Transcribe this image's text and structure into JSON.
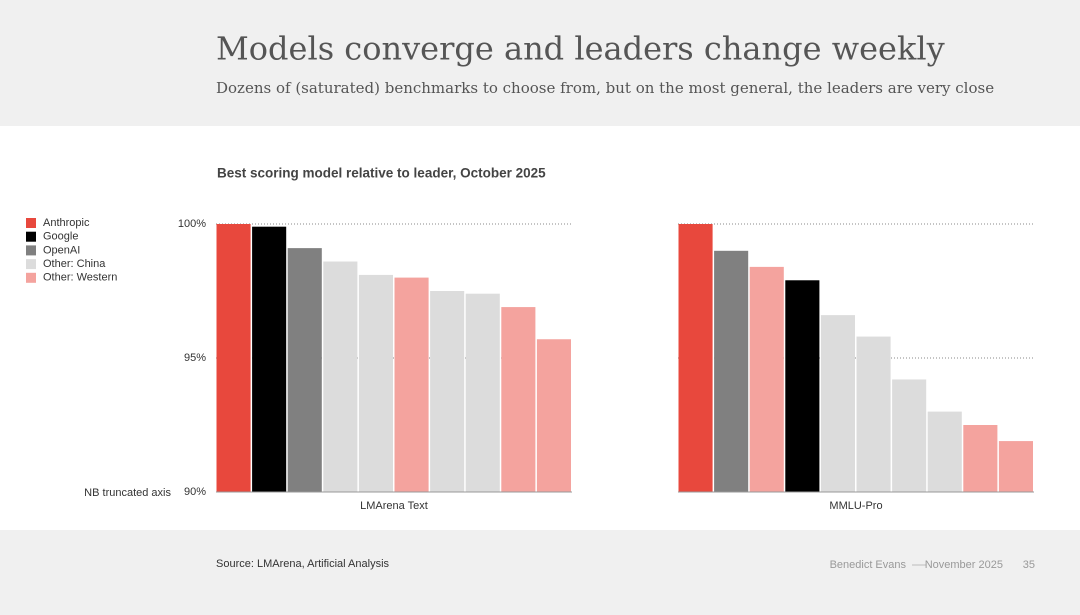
{
  "header": {
    "title": "Models converge and leaders change weekly",
    "subtitle": "Dozens of (saturated) benchmarks to choose from, but on the most general, the leaders are very close"
  },
  "chart_title": "Best scoring model relative to leader, October 2025",
  "note": "NB truncated axis",
  "legend": [
    {
      "name": "Anthropic",
      "color": "#e8483d"
    },
    {
      "name": "Google",
      "color": "#000000"
    },
    {
      "name": "OpenAI",
      "color": "#808080"
    },
    {
      "name": "Other: China",
      "color": "#dcdcdc"
    },
    {
      "name": "Other: Western",
      "color": "#f4a39e"
    }
  ],
  "chart_data": [
    {
      "type": "bar",
      "xlabel": "LMArena Text",
      "values": [
        100,
        99.9,
        99.1,
        98.6,
        98.1,
        98.0,
        97.5,
        97.4,
        96.9,
        95.7
      ],
      "colors": [
        "#e8483d",
        "#000000",
        "#808080",
        "#dcdcdc",
        "#dcdcdc",
        "#f4a39e",
        "#dcdcdc",
        "#dcdcdc",
        "#f4a39e",
        "#f4a39e"
      ],
      "ylim": [
        90,
        100
      ],
      "yticks": [
        {
          "value": 90,
          "label": "90%"
        },
        {
          "value": 95,
          "label": "95%"
        },
        {
          "value": 100,
          "label": "100%"
        }
      ],
      "ytick_labels": true,
      "grid": true
    },
    {
      "type": "bar",
      "xlabel": "MMLU-Pro",
      "values": [
        100,
        99.0,
        98.4,
        97.9,
        96.6,
        95.8,
        94.2,
        93.0,
        92.5,
        91.9
      ],
      "colors": [
        "#e8483d",
        "#808080",
        "#f4a39e",
        "#000000",
        "#dcdcdc",
        "#dcdcdc",
        "#dcdcdc",
        "#dcdcdc",
        "#f4a39e",
        "#f4a39e"
      ],
      "ylim": [
        90,
        100
      ],
      "yticks": [
        {
          "value": 90,
          "label": "90%"
        },
        {
          "value": 95,
          "label": "95%"
        },
        {
          "value": 100,
          "label": "100%"
        }
      ],
      "ytick_labels": false,
      "grid": true
    }
  ],
  "footer": {
    "source": "Source: LMArena, Artificial Analysis",
    "author": "Benedict Evans",
    "date": "November 2025",
    "page": "35"
  }
}
